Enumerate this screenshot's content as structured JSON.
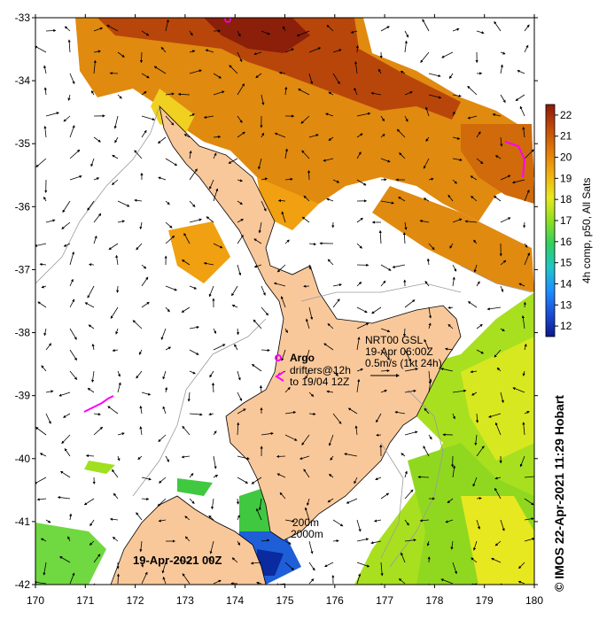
{
  "map": {
    "lat_axis": {
      "min": -42,
      "max": -33,
      "ticks": [
        "-33",
        "-34",
        "-35",
        "-36",
        "-37",
        "-38",
        "-39",
        "-40",
        "-41",
        "-42"
      ]
    },
    "lon_axis": {
      "min": 170,
      "max": 180,
      "ticks": [
        "170",
        "171",
        "172",
        "173",
        "174",
        "175",
        "176",
        "177",
        "178",
        "179",
        "180"
      ]
    },
    "land_color": "#f9c89a",
    "coast_color": "#000000",
    "bathy_color": "#9a9a9a"
  },
  "colorbar": {
    "label": "4h comp, p50, All Sats",
    "ticks": [
      "12",
      "13",
      "14",
      "15",
      "16",
      "17",
      "18",
      "19",
      "20",
      "21",
      "22"
    ],
    "range": [
      11.5,
      22.5
    ],
    "colors": [
      "#0a1a8c",
      "#1b4fd8",
      "#1e90ff",
      "#20c6c6",
      "#30d060",
      "#90e020",
      "#e8e820",
      "#f0b010",
      "#e07a0a",
      "#c04a0a",
      "#8c1a0a"
    ]
  },
  "legend": {
    "argo_label": "Argo",
    "drifters_line1": "drifters@12h",
    "drifters_line2": "to 19/04 12Z",
    "nrt_line1": "NRT00 GSL",
    "nrt_line2": "19-Apr 06:00Z",
    "nrt_line3": "0.5m/s (1kt 24h)",
    "contour_200": "200m",
    "contour_2000": "2000m"
  },
  "date_label": "19-Apr-2021 00Z",
  "credit": "© IMOS 22-Apr-2021 11:29 Hobart",
  "colors": {
    "argo": "#ff00ff",
    "drifter": "#ff00ff"
  }
}
